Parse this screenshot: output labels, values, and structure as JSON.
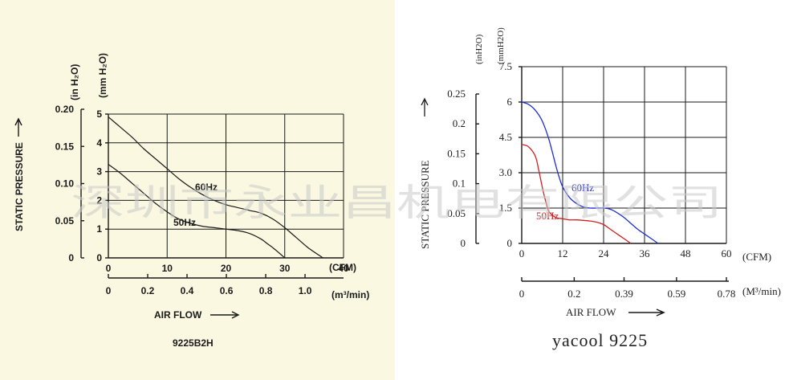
{
  "watermark": "深圳市永业昌机电有限公司",
  "chart_data": [
    {
      "type": "line",
      "title": "9225B2H",
      "xlabel": "AIR FLOW",
      "ylabel": "STATIC PRESSURE",
      "x_unit_cfm": "(CFM)",
      "x_unit_m3": "(m³/min)",
      "y_unit_inh2o": "(in H₂O)",
      "y_unit_mmh2o": "(mm H₂O)",
      "xlim": [
        0,
        40
      ],
      "ylim": [
        0,
        5
      ],
      "x_ticks_cfm": [
        "0",
        "10",
        "20",
        "30",
        "40"
      ],
      "x_ticks_m3": [
        "0",
        "0.2",
        "0.4",
        "0.6",
        "0.8",
        "1.0"
      ],
      "y_ticks_inh2o": [
        "0",
        "0.05",
        "0.10",
        "0.15",
        "0.20"
      ],
      "y_ticks_mmh2o": [
        "0",
        "1",
        "2",
        "3",
        "4",
        "5"
      ],
      "grid": true,
      "series": [
        {
          "name": "60Hz",
          "color": "#1a1a1a",
          "x": [
            0,
            2,
            4,
            6,
            8,
            10,
            12,
            14,
            16,
            18,
            20,
            22,
            24,
            26,
            28,
            30,
            32,
            34,
            36.5
          ],
          "y": [
            4.9,
            4.55,
            4.2,
            3.8,
            3.45,
            3.1,
            2.75,
            2.45,
            2.2,
            2.0,
            1.85,
            1.75,
            1.65,
            1.55,
            1.35,
            1.05,
            0.7,
            0.35,
            0
          ]
        },
        {
          "name": "50Hz",
          "color": "#1a1a1a",
          "x": [
            0,
            2,
            4,
            6,
            8,
            10,
            12,
            14,
            16,
            18,
            20,
            22,
            24,
            26,
            27,
            28,
            29,
            30
          ],
          "y": [
            3.25,
            2.95,
            2.6,
            2.25,
            1.9,
            1.6,
            1.35,
            1.2,
            1.1,
            1.05,
            1.0,
            0.95,
            0.85,
            0.65,
            0.5,
            0.35,
            0.18,
            0
          ]
        }
      ]
    },
    {
      "type": "line",
      "title": "yacool 9225",
      "xlabel": "AIR FLOW",
      "ylabel": "STATIC PRESSURE",
      "x_unit_cfm": "(CFM)",
      "x_unit_m3": "(M³/min)",
      "y_unit_inh2o": "(inH2O)",
      "y_unit_mmh2o": "(mmH2O)",
      "xlim": [
        0,
        60
      ],
      "ylim": [
        0,
        7.5
      ],
      "x_ticks_cfm": [
        "0",
        "12",
        "24",
        "36",
        "48",
        "60"
      ],
      "x_ticks_m3": [
        "0",
        "0.2",
        "0.39",
        "0.59",
        "0.78"
      ],
      "y_ticks_inh2o": [
        "0",
        "0.05",
        "0.1",
        "0.15",
        "0.2",
        "0.25"
      ],
      "y_ticks_mmh2o": [
        "0",
        "1.5",
        "3.0",
        "4.5",
        "6",
        "7.5"
      ],
      "grid": true,
      "series": [
        {
          "name": "60Hz",
          "color": "#1f2fd6",
          "x": [
            0,
            2,
            4,
            6,
            8,
            10,
            11,
            12,
            14,
            16,
            18,
            20,
            22,
            24,
            26,
            28,
            30,
            32,
            34,
            36,
            38,
            40
          ],
          "y": [
            6.0,
            5.9,
            5.65,
            5.2,
            4.4,
            3.3,
            2.8,
            2.4,
            1.95,
            1.7,
            1.55,
            1.5,
            1.5,
            1.5,
            1.45,
            1.3,
            1.1,
            0.85,
            0.6,
            0.4,
            0.2,
            0
          ]
        },
        {
          "name": "50Hz",
          "color": "#d11f1f",
          "x": [
            0,
            2,
            4,
            5,
            6,
            7,
            8,
            10,
            12,
            14,
            16,
            18,
            20,
            22,
            24,
            26,
            28,
            30,
            32
          ],
          "y": [
            4.2,
            4.1,
            3.7,
            3.1,
            2.4,
            1.8,
            1.35,
            1.1,
            1.05,
            1.0,
            1.0,
            0.98,
            0.95,
            0.9,
            0.8,
            0.6,
            0.4,
            0.2,
            0
          ]
        }
      ]
    }
  ]
}
